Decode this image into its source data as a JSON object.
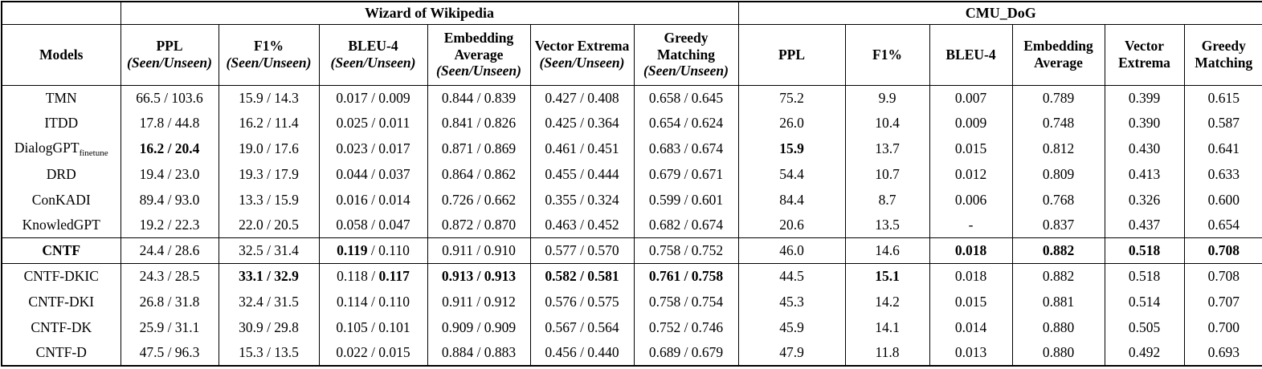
{
  "table": {
    "groups": [
      {
        "label": "",
        "span": 1
      },
      {
        "label": "Wizard of Wikipedia",
        "span": 6
      },
      {
        "label": "CMU_DoG",
        "span": 6
      }
    ],
    "columns": [
      {
        "title": "Models",
        "sub": ""
      },
      {
        "title": "PPL",
        "sub": "(Seen/Unseen)"
      },
      {
        "title": "F1%",
        "sub": "(Seen/Unseen)"
      },
      {
        "title": "BLEU-4",
        "sub": "(Seen/Unseen)"
      },
      {
        "title": "Embedding Average",
        "sub": "(Seen/Unseen)"
      },
      {
        "title": "Vector Extrema",
        "sub": "(Seen/Unseen)"
      },
      {
        "title": "Greedy Matching",
        "sub": "(Seen/Unseen)"
      },
      {
        "title": "PPL",
        "sub": ""
      },
      {
        "title": "F1%",
        "sub": ""
      },
      {
        "title": "BLEU-4",
        "sub": ""
      },
      {
        "title": "Embedding Average",
        "sub": ""
      },
      {
        "title": "Vector Extrema",
        "sub": ""
      },
      {
        "title": "Greedy Matching",
        "sub": ""
      }
    ],
    "rows": [
      {
        "model": "TMN",
        "model_sub": "",
        "model_bold": false,
        "separator_above": false,
        "cells": [
          "66.5 / 103.6",
          "15.9 / 14.3",
          "0.017 / 0.009",
          "0.844 / 0.839",
          "0.427 / 0.408",
          "0.658 / 0.645",
          "75.2",
          "9.9",
          "0.007",
          "0.789",
          "0.399",
          "0.615"
        ]
      },
      {
        "model": "ITDD",
        "model_sub": "",
        "model_bold": false,
        "separator_above": false,
        "cells": [
          "17.8 / 44.8",
          "16.2 / 11.4",
          "0.025 / 0.011",
          "0.841 / 0.826",
          "0.425 / 0.364",
          "0.654 / 0.624",
          "26.0",
          "10.4",
          "0.009",
          "0.748",
          "0.390",
          "0.587"
        ]
      },
      {
        "model": "DialogGPT",
        "model_sub": "finetune",
        "model_bold": false,
        "separator_above": false,
        "cells": [
          [
            [
              "16.2 / 20.4",
              1
            ]
          ],
          "19.0 / 17.6",
          "0.023 / 0.017",
          "0.871 / 0.869",
          "0.461 / 0.451",
          "0.683 / 0.674",
          [
            [
              "15.9",
              1
            ]
          ],
          "13.7",
          "0.015",
          "0.812",
          "0.430",
          "0.641"
        ]
      },
      {
        "model": "DRD",
        "model_sub": "",
        "model_bold": false,
        "separator_above": false,
        "cells": [
          "19.4 / 23.0",
          "19.3 / 17.9",
          "0.044 / 0.037",
          "0.864 / 0.862",
          "0.455 / 0.444",
          "0.679 / 0.671",
          "54.4",
          "10.7",
          "0.012",
          "0.809",
          "0.413",
          "0.633"
        ]
      },
      {
        "model": "ConKADI",
        "model_sub": "",
        "model_bold": false,
        "separator_above": false,
        "cells": [
          "89.4 / 93.0",
          "13.3 / 15.9",
          "0.016 / 0.014",
          "0.726 / 0.662",
          "0.355 / 0.324",
          "0.599 / 0.601",
          "84.4",
          "8.7",
          "0.006",
          "0.768",
          "0.326",
          "0.600"
        ]
      },
      {
        "model": "KnowledGPT",
        "model_sub": "",
        "model_bold": false,
        "separator_above": false,
        "cells": [
          "19.2 / 22.3",
          "22.0 / 20.5",
          "0.058 / 0.047",
          "0.872 / 0.870",
          "0.463 / 0.452",
          "0.682 / 0.674",
          "20.6",
          "13.5",
          "-",
          "0.837",
          "0.437",
          "0.654"
        ]
      },
      {
        "model": "CNTF",
        "model_sub": "",
        "model_bold": true,
        "separator_above": true,
        "cells": [
          "24.4 / 28.6",
          "32.5 / 31.4",
          [
            [
              "0.119",
              1
            ],
            [
              " / 0.110",
              0
            ]
          ],
          "0.911 / 0.910",
          "0.577 / 0.570",
          "0.758 / 0.752",
          "46.0",
          "14.6",
          [
            [
              "0.018",
              1
            ]
          ],
          [
            [
              "0.882",
              1
            ]
          ],
          [
            [
              "0.518",
              1
            ]
          ],
          [
            [
              "0.708",
              1
            ]
          ]
        ]
      },
      {
        "model": "CNTF-DKIC",
        "model_sub": "",
        "model_bold": false,
        "separator_above": true,
        "cells": [
          "24.3 / 28.5",
          [
            [
              "33.1 / 32.9",
              1
            ]
          ],
          [
            [
              "0.118 / ",
              0
            ],
            [
              "0.117",
              1
            ]
          ],
          [
            [
              "0.913 / 0.913",
              1
            ]
          ],
          [
            [
              "0.582 / 0.581",
              1
            ]
          ],
          [
            [
              "0.761 / 0.758",
              1
            ]
          ],
          "44.5",
          [
            [
              "15.1",
              1
            ]
          ],
          "0.018",
          "0.882",
          "0.518",
          "0.708"
        ]
      },
      {
        "model": "CNTF-DKI",
        "model_sub": "",
        "model_bold": false,
        "separator_above": false,
        "cells": [
          "26.8 / 31.8",
          "32.4 / 31.5",
          "0.114 / 0.110",
          "0.911 / 0.912",
          "0.576 / 0.575",
          "0.758 / 0.754",
          "45.3",
          "14.2",
          "0.015",
          "0.881",
          "0.514",
          "0.707"
        ]
      },
      {
        "model": "CNTF-DK",
        "model_sub": "",
        "model_bold": false,
        "separator_above": false,
        "cells": [
          "25.9 / 31.1",
          "30.9 / 29.8",
          "0.105 / 0.101",
          "0.909 / 0.909",
          "0.567 / 0.564",
          "0.752 / 0.746",
          "45.9",
          "14.1",
          "0.014",
          "0.880",
          "0.505",
          "0.700"
        ]
      },
      {
        "model": "CNTF-D",
        "model_sub": "",
        "model_bold": false,
        "separator_above": false,
        "cells": [
          "47.5 / 96.3",
          "15.3 / 13.5",
          "0.022 / 0.015",
          "0.884 / 0.883",
          "0.456 / 0.440",
          "0.689 / 0.679",
          "47.9",
          "11.8",
          "0.013",
          "0.880",
          "0.492",
          "0.693"
        ]
      }
    ]
  }
}
